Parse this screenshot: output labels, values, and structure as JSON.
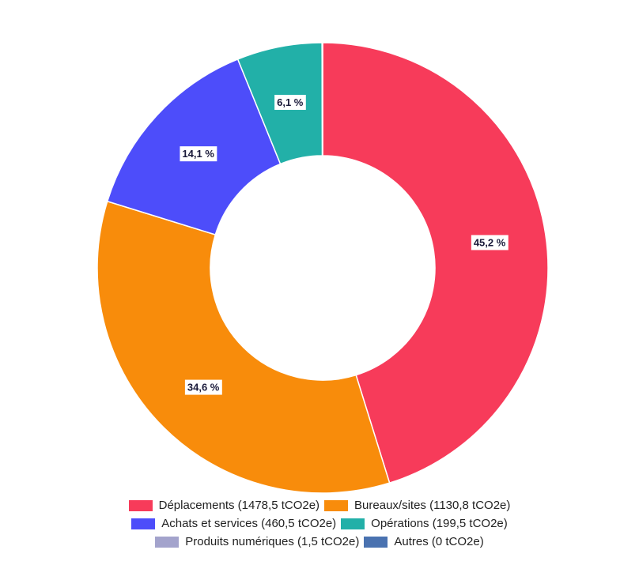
{
  "chart_data": {
    "type": "pie",
    "variant": "donut",
    "slices": [
      {
        "label": "Déplacements",
        "value": 1478.5,
        "legend": "Déplacements (1478,5 tCO2e)",
        "percent_label": "45,2 %",
        "color": "#F73B5A"
      },
      {
        "label": "Bureaux/sites",
        "value": 1130.8,
        "legend": "Bureaux/sites (1130,8 tCO2e)",
        "percent_label": "34,6 %",
        "color": "#F88C0B"
      },
      {
        "label": "Achats et services",
        "value": 460.5,
        "legend": "Achats et services (460,5 tCO2e)",
        "percent_label": "14,1 %",
        "color": "#4D4DFA"
      },
      {
        "label": "Opérations",
        "value": 199.5,
        "legend": "Opérations (199,5 tCO2e)",
        "percent_label": "6,1 %",
        "color": "#22B0A8"
      },
      {
        "label": "Produits numériques",
        "value": 1.5,
        "legend": "Produits numériques (1,5 tCO2e)",
        "percent_label": "",
        "color": "#A3A3CC"
      },
      {
        "label": "Autres",
        "value": 0,
        "legend": "Autres (0 tCO2e)",
        "percent_label": "",
        "color": "#4A72B0"
      }
    ],
    "legend_position": "bottom"
  }
}
